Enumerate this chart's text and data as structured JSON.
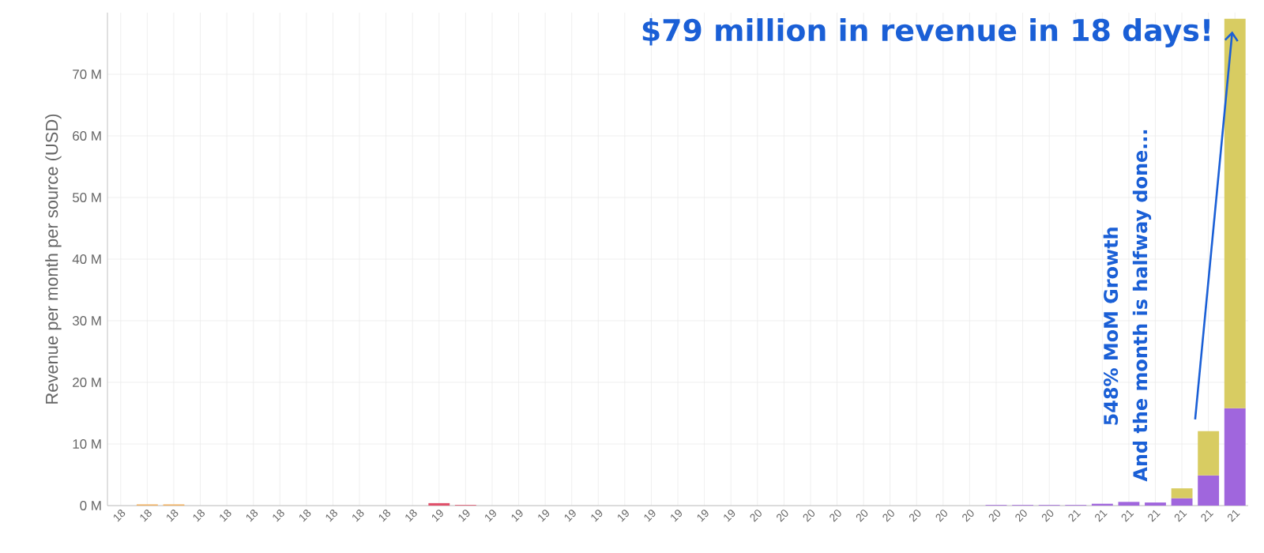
{
  "chart_data": {
    "type": "bar",
    "stacked": true,
    "title": "$79 million in revenue in 18 days!",
    "ylabel": "Revenue per month per source (USD)",
    "categories": [
      "18",
      "18",
      "18",
      "18",
      "18",
      "18",
      "18",
      "18",
      "18",
      "18",
      "18",
      "18",
      "19",
      "19",
      "19",
      "19",
      "19",
      "19",
      "19",
      "19",
      "19",
      "19",
      "19",
      "19",
      "20",
      "20",
      "20",
      "20",
      "20",
      "20",
      "20",
      "20",
      "20",
      "20",
      "20",
      "20",
      "21",
      "21",
      "21",
      "21",
      "21",
      "21",
      "21"
    ],
    "series": [
      {
        "color": "#a066dd",
        "values": [
          null,
          null,
          null,
          null,
          null,
          null,
          null,
          null,
          null,
          null,
          null,
          null,
          null,
          null,
          null,
          null,
          null,
          null,
          null,
          null,
          null,
          null,
          null,
          null,
          null,
          null,
          null,
          null,
          null,
          null,
          null,
          null,
          null,
          0.1,
          0.1,
          0.1,
          0.1,
          0.3,
          0.6,
          0.5,
          1.2,
          4.9,
          15.8
        ]
      },
      {
        "color": "#d8cc62",
        "values": [
          null,
          null,
          null,
          null,
          null,
          null,
          null,
          null,
          null,
          null,
          null,
          null,
          null,
          null,
          null,
          null,
          null,
          null,
          null,
          null,
          null,
          null,
          null,
          null,
          null,
          null,
          null,
          null,
          null,
          null,
          null,
          null,
          null,
          null,
          null,
          null,
          null,
          null,
          null,
          null,
          1.6,
          7.2,
          63.2
        ]
      },
      {
        "color": "#f0b060",
        "values": [
          null,
          0.2,
          0.2,
          null,
          null,
          null,
          null,
          null,
          null,
          null,
          null,
          null,
          null,
          null,
          null,
          null,
          null,
          null,
          null,
          null,
          null,
          null,
          null,
          null,
          null,
          null,
          null,
          null,
          null,
          null,
          null,
          null,
          null,
          null,
          null,
          null,
          null,
          null,
          null,
          null,
          null,
          null,
          null
        ]
      },
      {
        "color": "#e0506a",
        "values": [
          null,
          null,
          null,
          null,
          null,
          null,
          null,
          null,
          null,
          null,
          null,
          null,
          0.4,
          0.1,
          null,
          null,
          null,
          null,
          null,
          null,
          null,
          null,
          null,
          null,
          null,
          null,
          null,
          null,
          null,
          null,
          null,
          null,
          null,
          null,
          null,
          null,
          null,
          null,
          null,
          null,
          null,
          null,
          null
        ]
      }
    ],
    "ylim": [
      0,
      80
    ],
    "yticks": [
      {
        "value": 0,
        "label": "0 M"
      },
      {
        "value": 10,
        "label": "10 M"
      },
      {
        "value": 20,
        "label": "20 M"
      },
      {
        "value": 30,
        "label": "30 M"
      },
      {
        "value": 40,
        "label": "40 M"
      },
      {
        "value": 50,
        "label": "50 M"
      },
      {
        "value": 60,
        "label": "60 M"
      },
      {
        "value": 70,
        "label": "70 M"
      }
    ],
    "grid": true,
    "annotations": [
      "548% MoM Growth",
      "And the month is halfway done..."
    ]
  }
}
